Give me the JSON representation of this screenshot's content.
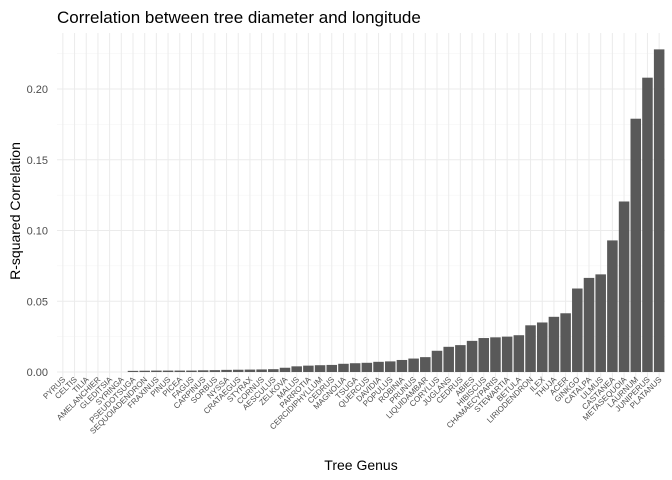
{
  "chart_data": {
    "type": "bar",
    "title": "Correlation between tree diameter and longitude",
    "xlabel": "Tree Genus",
    "ylabel": "R-squared Correlation",
    "ylim": [
      0,
      0.23
    ],
    "yticks": [
      0.0,
      0.05,
      0.1,
      0.15,
      0.2
    ],
    "ytick_labels": [
      "0.00",
      "0.05",
      "0.10",
      "0.15",
      "0.20"
    ],
    "grid": true,
    "bar_color": "#595959",
    "categories": [
      "PYRUS",
      "CELTIS",
      "TILIA",
      "AMELANCHIER",
      "GLEDITSIA",
      "SYRINGA",
      "PSEUDOTSUGA",
      "SEQUOIADENDRON",
      "FRAXINUS",
      "PINUS",
      "PICEA",
      "FAGUS",
      "CARPINUS",
      "SORBUS",
      "NYSSA",
      "CRATAEGUS",
      "STYRAX",
      "CORNUS",
      "AESCULUS",
      "ZELKOVA",
      "MALUS",
      "PARROTIA",
      "CERCIDIPHYLLUM",
      "CEDRUS",
      "MAGNOLIA",
      "TSUGA",
      "QUERCUS",
      "DAVIDIA",
      "POPULUS",
      "ROBINIA",
      "PRUNUS",
      "LIQUIDAMBAR",
      "CORYLUS",
      "JUGLANS",
      "CEDRUS",
      "ABIES",
      "HIBISCUS",
      "CHAMAECYPARIS",
      "STEWARTIA",
      "BETULA",
      "LIRIODENDRON",
      "ILEX",
      "THUJA",
      "ACER",
      "GINKGO",
      "CATALPA",
      "ULMUS",
      "CASTANEA",
      "METASEQUOIA",
      "LAURNUM",
      "JUNIPERUS",
      "PLATANUS"
    ],
    "values": [
      0.0,
      0.0,
      0.0,
      0.0,
      0.0,
      0.0,
      0.0008,
      0.0009,
      0.001,
      0.001,
      0.001,
      0.001,
      0.0012,
      0.0013,
      0.0015,
      0.0016,
      0.0017,
      0.0018,
      0.002,
      0.003,
      0.004,
      0.0045,
      0.0048,
      0.005,
      0.0058,
      0.0062,
      0.0065,
      0.0072,
      0.0075,
      0.0085,
      0.0095,
      0.0105,
      0.015,
      0.0178,
      0.019,
      0.022,
      0.024,
      0.0245,
      0.025,
      0.026,
      0.033,
      0.035,
      0.039,
      0.0415,
      0.059,
      0.0665,
      0.069,
      0.093,
      0.1205,
      0.179,
      0.208,
      0.228
    ]
  }
}
